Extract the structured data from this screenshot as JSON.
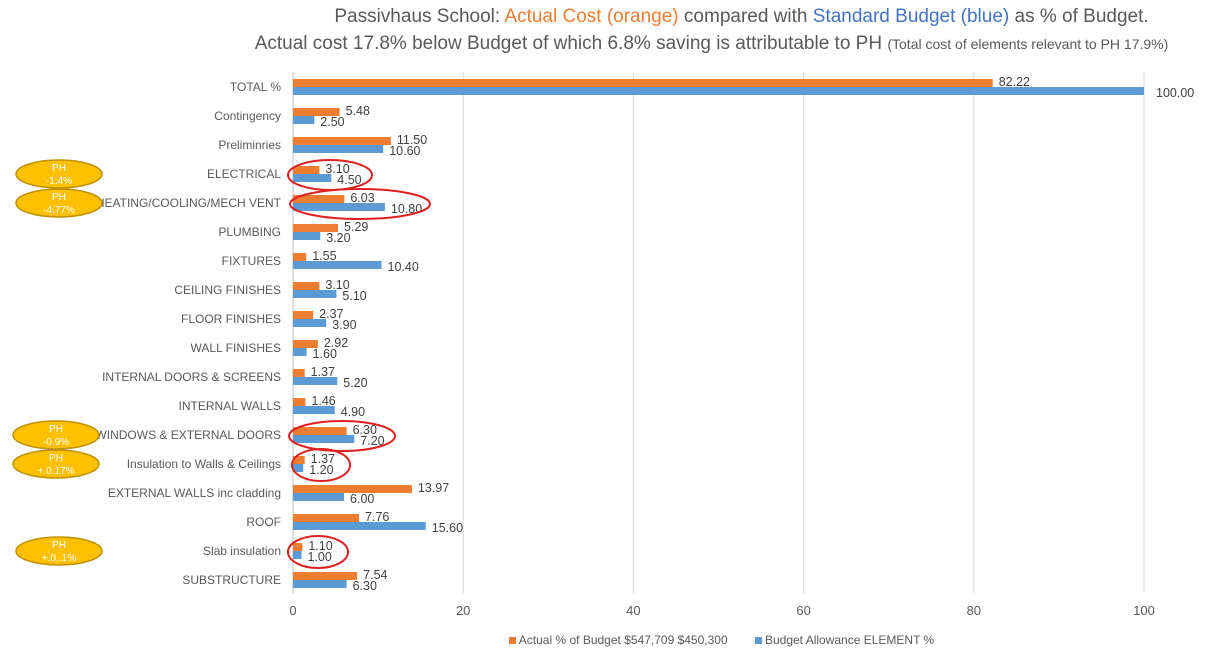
{
  "title": {
    "line1_prefix": "Passivhaus School: ",
    "line1_actual": "Actual Cost (orange)",
    "line1_mid": " compared with ",
    "line1_budget": "Standard Budget (blue)",
    "line1_suffix": " as % of Budget.",
    "line2_main": "Actual cost 17.8% below Budget of which 6.8% saving is attributable to PH ",
    "line2_small": "(Total cost of elements relevant to PH 17.9%)"
  },
  "chart_data": {
    "type": "bar",
    "orientation": "horizontal",
    "title": "Passivhaus School: Actual Cost (orange) compared with Standard Budget (blue) as % of Budget.",
    "subtitle": "Actual cost 17.8% below Budget of which 6.8% saving is attributable to PH (Total cost of elements relevant to PH 17.9%)",
    "categories": [
      "TOTAL %",
      "Contingency",
      "Preliminries",
      "ELECTRICAL",
      "HEATING/COOLING/MECH VENT",
      "PLUMBING",
      "FIXTURES",
      "CEILING FINISHES",
      "FLOOR FINISHES",
      "WALL FINISHES",
      "INTERNAL DOORS & SCREENS",
      "INTERNAL WALLS",
      "WINDOWS & EXTERNAL DOORS",
      "Insulation to Walls & Ceilings",
      "EXTERNAL WALLS inc cladding",
      "ROOF",
      "Slab insulation",
      "SUBSTRUCTURE"
    ],
    "series": [
      {
        "name": "Actual % of Budget $547,709 $450,300",
        "color": "#ed7d31",
        "values": [
          82.22,
          5.48,
          11.5,
          3.1,
          6.03,
          5.29,
          1.55,
          3.1,
          2.37,
          2.92,
          1.37,
          1.46,
          6.3,
          1.37,
          13.97,
          7.76,
          1.1,
          7.54
        ]
      },
      {
        "name": "Budget Allowance ELEMENT %",
        "color": "#5b9bd5",
        "values": [
          100.0,
          2.5,
          10.6,
          4.5,
          10.8,
          3.2,
          10.4,
          5.1,
          3.9,
          1.6,
          5.2,
          4.9,
          7.2,
          1.2,
          6.0,
          15.6,
          1.0,
          6.3
        ]
      }
    ],
    "xlim": [
      0,
      100
    ],
    "xticks": [
      "0",
      "20",
      "40",
      "60",
      "80",
      "100"
    ],
    "grid": true,
    "legend_position": "bottom",
    "highlighted_categories": [
      "ELECTRICAL",
      "HEATING/COOLING/MECH VENT",
      "WINDOWS & EXTERNAL DOORS",
      "Insulation to Walls & Ceilings",
      "Slab insulation"
    ],
    "annotations": [
      {
        "category": "ELECTRICAL",
        "line1": "PH",
        "line2": "-1.4%"
      },
      {
        "category": "HEATING/COOLING/MECH VENT",
        "line1": "PH",
        "line2": "-4.77%"
      },
      {
        "category": "WINDOWS & EXTERNAL DOORS",
        "line1": "PH",
        "line2": "-0.9%"
      },
      {
        "category": "Insulation to Walls & Ceilings",
        "line1": "PH",
        "line2": "+.0.17%"
      },
      {
        "category": "Slab insulation",
        "line1": "PH",
        "line2": "+.0..1%"
      }
    ]
  },
  "colors": {
    "actual": "#ed7d31",
    "budget": "#5b9bd5",
    "grid": "#d9d9d9",
    "highlight_ring": "#e02020",
    "badge_fill": "#ffc000",
    "badge_stroke": "#bf9000"
  }
}
